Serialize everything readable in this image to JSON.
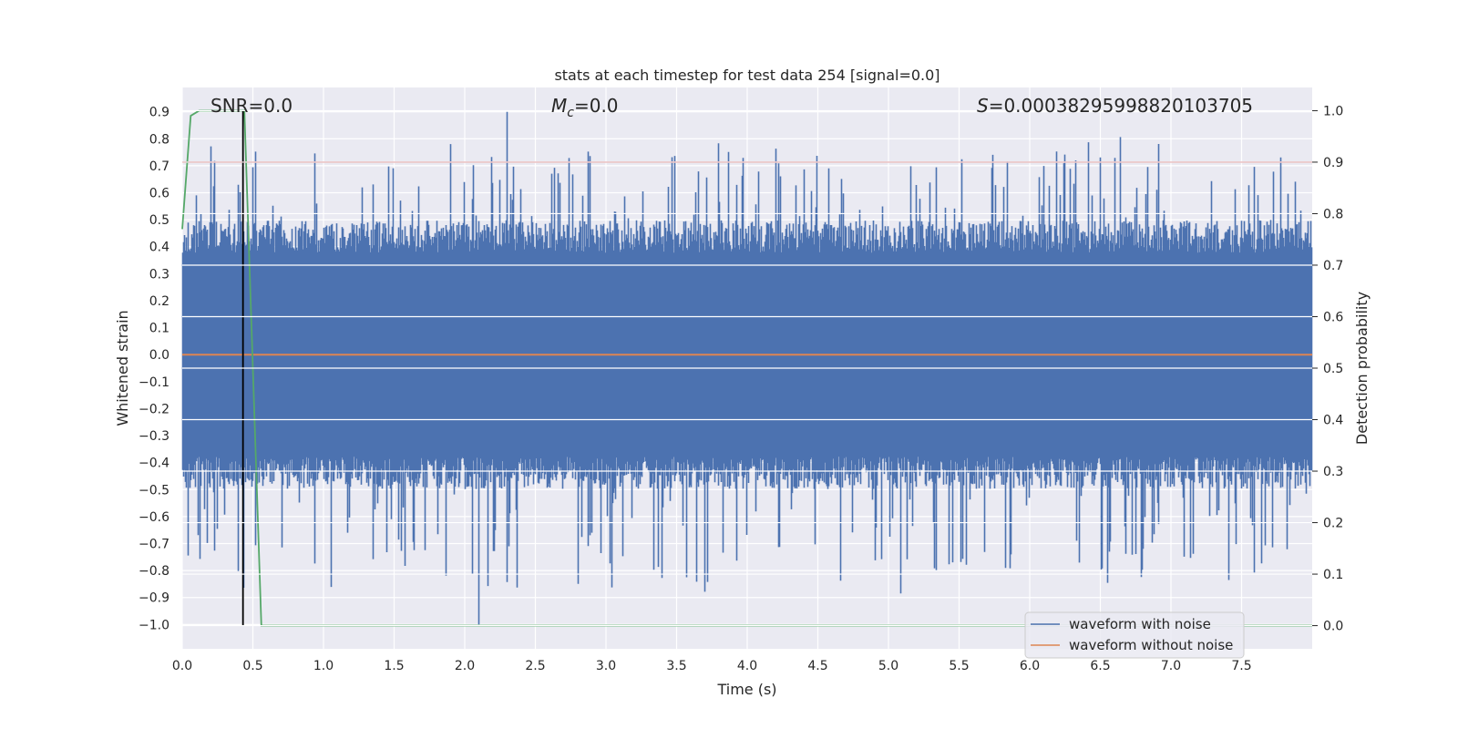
{
  "chart_data": {
    "type": "line",
    "title": "stats at each timestep for test data 254 [signal=0.0]",
    "xlabel": "Time (s)",
    "ylabel": "Whitened strain",
    "y2label": "Detection probability",
    "xlim": [
      0.0,
      8.0
    ],
    "ylim": [
      -1.09,
      0.99
    ],
    "y2lim": [
      -0.045,
      1.045
    ],
    "xticks": [
      "0.0",
      "0.5",
      "1.0",
      "1.5",
      "2.0",
      "2.5",
      "3.0",
      "3.5",
      "4.0",
      "4.5",
      "5.0",
      "5.5",
      "6.0",
      "6.5",
      "7.0",
      "7.5"
    ],
    "yticks": [
      "0.9",
      "0.8",
      "0.7",
      "0.6",
      "0.5",
      "0.4",
      "0.3",
      "0.2",
      "0.1",
      "0.0",
      "−0.1",
      "−0.2",
      "−0.3",
      "−0.4",
      "−0.5",
      "−0.6",
      "−0.7",
      "−0.8",
      "−0.9",
      "−1.0"
    ],
    "y2ticks": [
      "1.0",
      "0.9",
      "0.8",
      "0.7",
      "0.6",
      "0.5",
      "0.4",
      "0.3",
      "0.2",
      "0.1",
      "0.0"
    ],
    "annotations": {
      "snr": "SNR=0.0",
      "mc_symbol": "M",
      "mc_subscript": "c",
      "mc_value": "=0.0",
      "s_symbol": "S",
      "s_value": "=0.00038295998820103705"
    },
    "threshold": {
      "y2": 0.9,
      "color": "#c44e52"
    },
    "vertical_marker": {
      "x": 0.43,
      "color": "#000000"
    },
    "series": [
      {
        "name": "waveform with noise",
        "axis": "left",
        "color": "#4c72b0",
        "description": "dense noise fluctuating roughly between -0.6 and 0.6 with spikes to about 0.9 and -1.0",
        "typical_range": [
          -0.42,
          0.42
        ],
        "extremes": {
          "max": 0.9,
          "max_at": 2.3,
          "min": -1.0,
          "min_at": 2.1
        }
      },
      {
        "name": "waveform without noise",
        "axis": "left",
        "color": "#dd8452",
        "x": [
          0.0,
          8.0
        ],
        "y": [
          0.0,
          0.0
        ]
      },
      {
        "name": "detection probability",
        "axis": "right",
        "color": "#55a868",
        "x": [
          0.0,
          0.06,
          0.12,
          0.2,
          0.3,
          0.44,
          0.5,
          0.56,
          8.0
        ],
        "y": [
          0.77,
          0.99,
          1.0,
          1.0,
          1.0,
          1.0,
          0.5,
          0.0,
          0.0
        ]
      }
    ],
    "legend": {
      "position": "lower-right",
      "entries": [
        {
          "label": "waveform with noise",
          "color": "#4c72b0"
        },
        {
          "label": "waveform without noise",
          "color": "#dd8452"
        }
      ]
    }
  }
}
